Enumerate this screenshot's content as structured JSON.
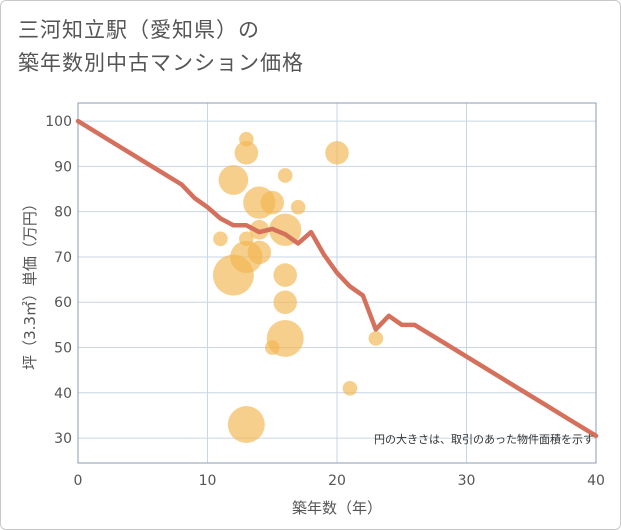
{
  "title_line1": "三河知立駅（愛知県）の",
  "title_line2": "築年数別中古マンション価格",
  "chart_data": {
    "type": "scatter",
    "xlabel": "築年数（年）",
    "ylabel": "坪（3.3㎡）単価（万円）",
    "xlim": [
      0,
      40
    ],
    "ylim": [
      24.5,
      104
    ],
    "xticks": [
      0,
      10,
      20,
      30,
      40
    ],
    "yticks": [
      30,
      40,
      50,
      60,
      70,
      80,
      90,
      100
    ],
    "grid": true,
    "annotation": "円の大きさは、取引のあった物件面積を示す",
    "colors": {
      "bubble": "#f2b54e",
      "line": "#d5705c",
      "grid": "#c8d6e5"
    },
    "bubbles": [
      {
        "x": 13,
        "y": 96,
        "size": 1
      },
      {
        "x": 13,
        "y": 93,
        "size": 3
      },
      {
        "x": 20,
        "y": 93,
        "size": 3
      },
      {
        "x": 16,
        "y": 88,
        "size": 1
      },
      {
        "x": 12,
        "y": 87,
        "size": 5
      },
      {
        "x": 14,
        "y": 82,
        "size": 6
      },
      {
        "x": 15,
        "y": 82,
        "size": 3
      },
      {
        "x": 17,
        "y": 81,
        "size": 1
      },
      {
        "x": 14,
        "y": 76,
        "size": 2
      },
      {
        "x": 16,
        "y": 76,
        "size": 6
      },
      {
        "x": 11,
        "y": 74,
        "size": 1
      },
      {
        "x": 13,
        "y": 74,
        "size": 1
      },
      {
        "x": 14,
        "y": 71,
        "size": 3
      },
      {
        "x": 13,
        "y": 70,
        "size": 6
      },
      {
        "x": 12,
        "y": 66,
        "size": 10
      },
      {
        "x": 16,
        "y": 66,
        "size": 3
      },
      {
        "x": 16,
        "y": 60,
        "size": 3
      },
      {
        "x": 16,
        "y": 52,
        "size": 8
      },
      {
        "x": 23,
        "y": 52,
        "size": 1
      },
      {
        "x": 15,
        "y": 50,
        "size": 1
      },
      {
        "x": 21,
        "y": 41,
        "size": 1
      },
      {
        "x": 13,
        "y": 33,
        "size": 8
      }
    ],
    "line": {
      "x": [
        0,
        2,
        4,
        6,
        8,
        9,
        10,
        11,
        12,
        13,
        14,
        15,
        16,
        17,
        18,
        19,
        20,
        21,
        22,
        23,
        24,
        25,
        26,
        28,
        30,
        32,
        34,
        36,
        38,
        40
      ],
      "y": [
        100,
        96.5,
        93,
        89.5,
        86,
        83,
        81,
        78.5,
        77,
        77,
        75.5,
        76.2,
        75,
        73,
        75.5,
        70.5,
        66.5,
        63.5,
        61.5,
        54,
        57,
        55,
        55,
        51.5,
        48,
        44.5,
        41,
        37.5,
        34,
        30.5
      ]
    }
  }
}
